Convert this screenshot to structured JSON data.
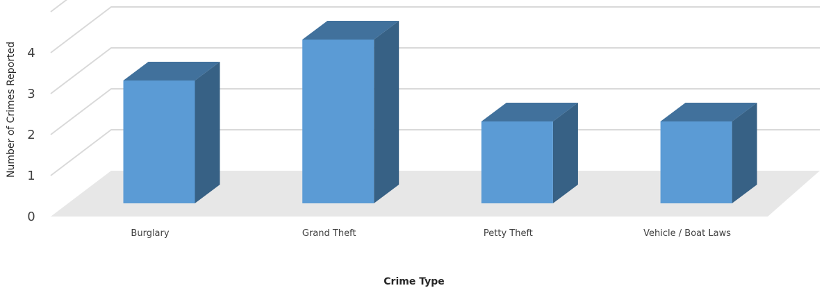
{
  "chart_data": {
    "type": "bar",
    "style": "3d-column",
    "categories": [
      "Burglary",
      "Grand Theft",
      "Petty Theft",
      "Vehicle / Boat Laws"
    ],
    "values": [
      3,
      4,
      2,
      2
    ],
    "title": "",
    "xlabel": "Crime Type",
    "ylabel": "Number of Crimes Reported",
    "ylim": [
      0,
      5
    ],
    "yticks": [
      0,
      1,
      2,
      3,
      4
    ],
    "grid": true,
    "legend": "none",
    "colors": {
      "bar_front": "#5b9bd5",
      "bar_top": "#41719c",
      "bar_side": "#376185",
      "floor": "#e7e7e7",
      "gridline": "#d9d9d9"
    }
  }
}
